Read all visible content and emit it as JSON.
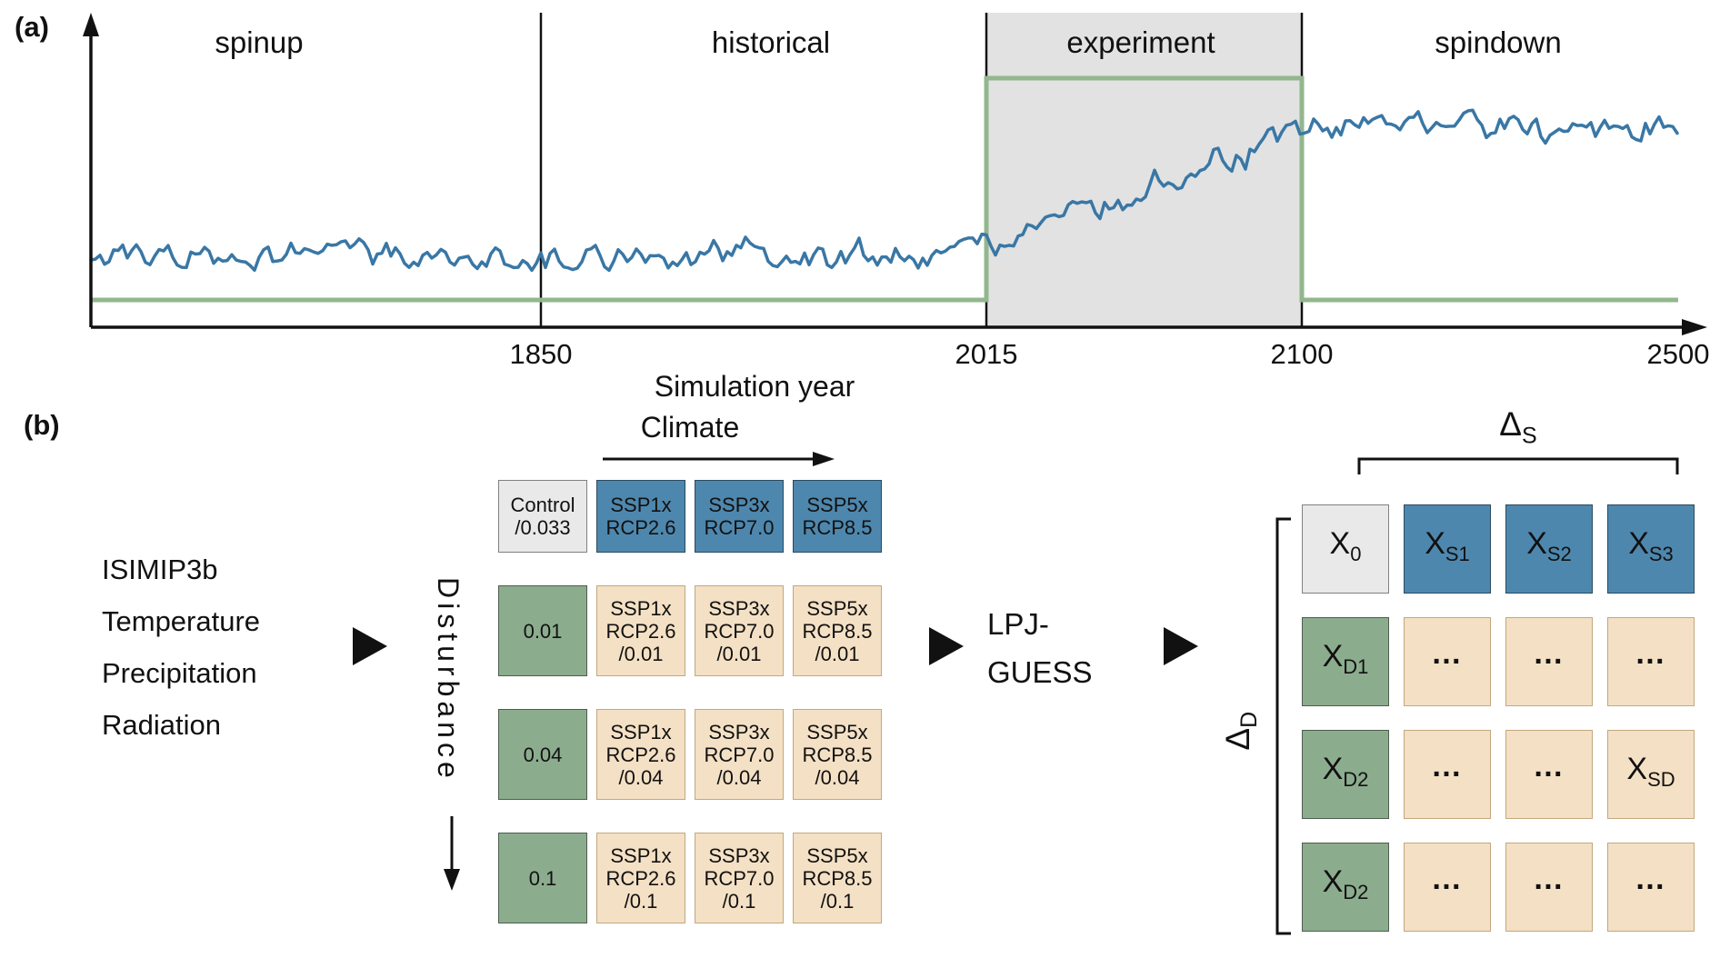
{
  "colors": {
    "climate_blue": "#4e87ad",
    "disturbance_green": "#8cac8e",
    "combo_tan": "#f4e0c4",
    "control_gray": "#e9e9e9",
    "experiment_shade": "#e2e2e2",
    "forcing_green": "#92b78d",
    "series_blue": "#3977a5",
    "ink": "#111111"
  },
  "panel_a": {
    "label": "(a)",
    "phase_labels": [
      "spinup",
      "historical",
      "experiment",
      "spindown"
    ],
    "x_ticks": [
      "1850",
      "2015",
      "2100",
      "2500"
    ],
    "x_axis_label": "Simulation year"
  },
  "chart_data": {
    "type": "line",
    "title": "",
    "xlabel": "Simulation year",
    "x_ticks": [
      1850,
      2015,
      2100,
      2500
    ],
    "phases": [
      {
        "name": "spinup",
        "end": 1850
      },
      {
        "name": "historical",
        "start": 1850,
        "end": 2015
      },
      {
        "name": "experiment",
        "start": 2015,
        "end": 2100,
        "shaded": true
      },
      {
        "name": "spindown",
        "start": 2100,
        "end": 2500
      }
    ],
    "series": [
      {
        "name": "model output",
        "color": "#3977a5",
        "style": "noisy line",
        "shape": "low noisy plateau until ~2015, increases during experiment 2015-2100, high noisy plateau 2100-2500"
      },
      {
        "name": "experiment forcing",
        "color": "#92b78d",
        "style": "step",
        "shape": "low before 2015, elevated box during 2015-2100, low after 2100"
      }
    ],
    "grid": false,
    "legend": false
  },
  "panel_b": {
    "label": "(b)",
    "input_lines": [
      "ISIMIP3b",
      "Temperature",
      "Precipitation",
      "Radiation"
    ],
    "climate_axis_label": "Climate",
    "disturbance_axis_label": "Disturbance",
    "model_lines": [
      "LPJ-",
      "GUESS"
    ],
    "delta_s": {
      "base": "Δ",
      "sub": "S"
    },
    "delta_d": {
      "base": "Δ",
      "sub": "D"
    },
    "design_matrix_rows": [
      [
        {
          "type": "control",
          "lines": [
            "Control",
            "/0.033"
          ]
        },
        {
          "type": "climate",
          "lines": [
            "SSP1x",
            "RCP2.6"
          ]
        },
        {
          "type": "climate",
          "lines": [
            "SSP3x",
            "RCP7.0"
          ]
        },
        {
          "type": "climate",
          "lines": [
            "SSP5x",
            "RCP8.5"
          ]
        }
      ],
      [
        {
          "type": "disturbance",
          "lines": [
            "0.01"
          ]
        },
        {
          "type": "combo",
          "lines": [
            "SSP1x",
            "RCP2.6",
            "/0.01"
          ]
        },
        {
          "type": "combo",
          "lines": [
            "SSP3x",
            "RCP7.0",
            "/0.01"
          ]
        },
        {
          "type": "combo",
          "lines": [
            "SSP5x",
            "RCP8.5",
            "/0.01"
          ]
        }
      ],
      [
        {
          "type": "disturbance",
          "lines": [
            "0.04"
          ]
        },
        {
          "type": "combo",
          "lines": [
            "SSP1x",
            "RCP2.6",
            "/0.04"
          ]
        },
        {
          "type": "combo",
          "lines": [
            "SSP3x",
            "RCP7.0",
            "/0.04"
          ]
        },
        {
          "type": "combo",
          "lines": [
            "SSP5x",
            "RCP8.5",
            "/0.04"
          ]
        }
      ],
      [
        {
          "type": "disturbance",
          "lines": [
            "0.1"
          ]
        },
        {
          "type": "combo",
          "lines": [
            "SSP1x",
            "RCP2.6",
            "/0.1"
          ]
        },
        {
          "type": "combo",
          "lines": [
            "SSP3x",
            "RCP7.0",
            "/0.1"
          ]
        },
        {
          "type": "combo",
          "lines": [
            "SSP5x",
            "RCP8.5",
            "/0.1"
          ]
        }
      ]
    ],
    "output_matrix_rows": [
      [
        {
          "type": "control",
          "base": "X",
          "sub": "0"
        },
        {
          "type": "climate",
          "base": "X",
          "sub": "S1"
        },
        {
          "type": "climate",
          "base": "X",
          "sub": "S2"
        },
        {
          "type": "climate",
          "base": "X",
          "sub": "S3"
        }
      ],
      [
        {
          "type": "disturbance",
          "base": "X",
          "sub": "D1"
        },
        {
          "type": "combo",
          "base": "…"
        },
        {
          "type": "combo",
          "base": "…"
        },
        {
          "type": "combo",
          "base": "…"
        }
      ],
      [
        {
          "type": "disturbance",
          "base": "X",
          "sub": "D2"
        },
        {
          "type": "combo",
          "base": "…"
        },
        {
          "type": "combo",
          "base": "…"
        },
        {
          "type": "combo",
          "base": "X",
          "sub": "SD"
        }
      ],
      [
        {
          "type": "disturbance",
          "base": "X",
          "sub": "D2"
        },
        {
          "type": "combo",
          "base": "…"
        },
        {
          "type": "combo",
          "base": "…"
        },
        {
          "type": "combo",
          "base": "…"
        }
      ]
    ]
  }
}
